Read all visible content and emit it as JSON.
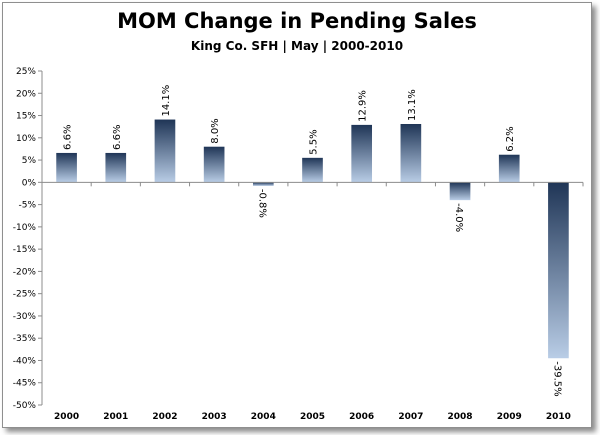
{
  "chart_data": {
    "type": "bar",
    "title": "MOM Change in Pending Sales",
    "subtitle": "King Co. SFH | May | 2000-2010",
    "categories": [
      "2000",
      "2001",
      "2002",
      "2003",
      "2004",
      "2005",
      "2006",
      "2007",
      "2008",
      "2009",
      "2010"
    ],
    "values": [
      6.6,
      6.6,
      14.1,
      8.0,
      -0.8,
      5.5,
      12.9,
      13.1,
      -4.0,
      6.2,
      -39.5
    ],
    "data_labels": [
      "6.6%",
      "6.6%",
      "14.1%",
      "8.0%",
      "-0.8%",
      "5.5%",
      "12.9%",
      "13.1%",
      "-4.0%",
      "6.2%",
      "-39.5%"
    ],
    "y_ticks": [
      "25%",
      "20%",
      "15%",
      "10%",
      "5%",
      "0%",
      "-5%",
      "-10%",
      "-15%",
      "-20%",
      "-25%",
      "-30%",
      "-35%",
      "-40%",
      "-45%",
      "-50%"
    ],
    "ylim": [
      -50,
      25
    ],
    "grid": false,
    "legend": "none",
    "colors": {
      "bar_dark": "#1f3556",
      "bar_light": "#b9cde6",
      "axis": "#8c8c8c"
    }
  }
}
